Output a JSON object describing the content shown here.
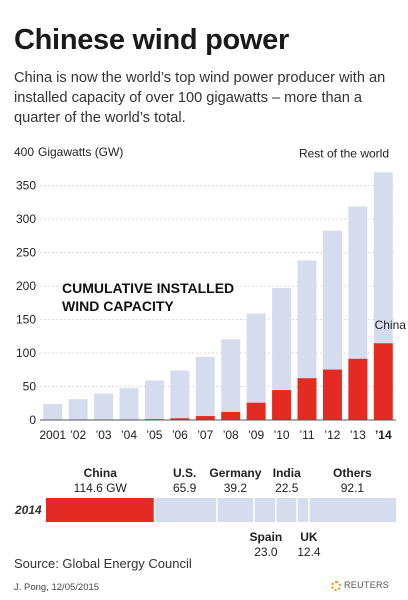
{
  "title": "Chinese wind power",
  "subtitle": "China is now the world’s top wind power producer with an installed capacity of over 100 gigawatts – more than a quarter of the world’s total.",
  "source": "Source: Global Energy Council",
  "credit": "J. Pong, 12/05/2015",
  "logo_text": "REUTERS",
  "colors": {
    "china": "#e32b24",
    "rest": "#d6dcee",
    "grid": "#cfcfcf",
    "text": "#222222"
  },
  "chart_data": [
    {
      "type": "bar",
      "stacked": true,
      "ylabel": "Gigawatts (GW)",
      "ylim": [
        0,
        400
      ],
      "yticks": [
        0,
        50,
        100,
        150,
        200,
        250,
        300,
        350,
        400
      ],
      "annotation": "CUMULATIVE INSTALLED WIND CAPACITY",
      "categories": [
        "2001",
        "’02",
        "’03",
        "’04",
        "’05",
        "’06",
        "’07",
        "’08",
        "’09",
        "’10",
        "’11",
        "’12",
        "’13",
        "’14"
      ],
      "series": [
        {
          "name": "China",
          "values": [
            0.4,
            0.5,
            0.6,
            0.8,
            1.3,
            2.6,
            5.9,
            12.0,
            25.8,
            44.7,
            62.4,
            75.3,
            91.4,
            114.6
          ]
        },
        {
          "name": "Rest of the world",
          "values": [
            23.5,
            30.6,
            38.9,
            46.8,
            57.8,
            71.4,
            88.1,
            108.6,
            133.1,
            152.3,
            175.6,
            207.3,
            227.2,
            255.0
          ]
        }
      ]
    },
    {
      "type": "bar",
      "orientation": "horizontal",
      "stacked": true,
      "row_label": "2014",
      "segments": [
        {
          "name": "China",
          "value": 114.6,
          "label": "114.6 GW"
        },
        {
          "name": "U.S.",
          "value": 65.9,
          "label": "65.9"
        },
        {
          "name": "Germany",
          "value": 39.2,
          "label": "39.2"
        },
        {
          "name": "Spain",
          "value": 23.0,
          "label": "23.0"
        },
        {
          "name": "India",
          "value": 22.5,
          "label": "22.5"
        },
        {
          "name": "UK",
          "value": 12.4,
          "label": "12.4"
        },
        {
          "name": "Others",
          "value": 92.1,
          "label": "92.1"
        }
      ]
    }
  ]
}
